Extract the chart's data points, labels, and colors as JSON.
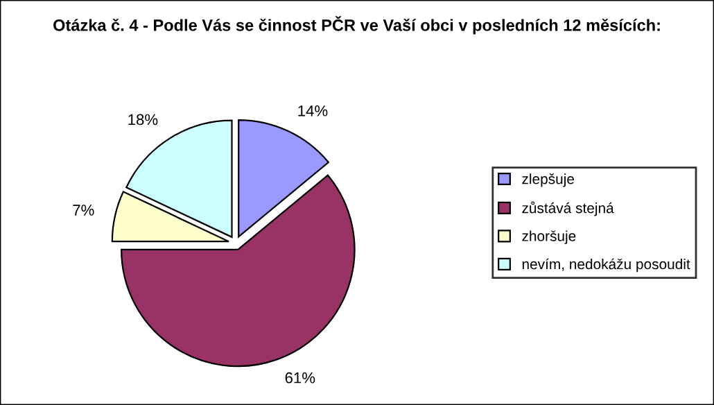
{
  "chart_data": {
    "type": "pie",
    "title": "Otázka č. 4 - Podle Vás se činnost PČR ve Vaší obci v posledních 12 měsících:",
    "categories": [
      "zlepšuje",
      "zůstává stejná",
      "zhoršuje",
      "nevím, nedokážu posoudit"
    ],
    "values": [
      14,
      61,
      7,
      18
    ],
    "colors": [
      "#9999ff",
      "#993366",
      "#ffffcc",
      "#ccffff"
    ],
    "value_labels": [
      "14%",
      "61%",
      "7%",
      "18%"
    ],
    "legend": "right"
  }
}
